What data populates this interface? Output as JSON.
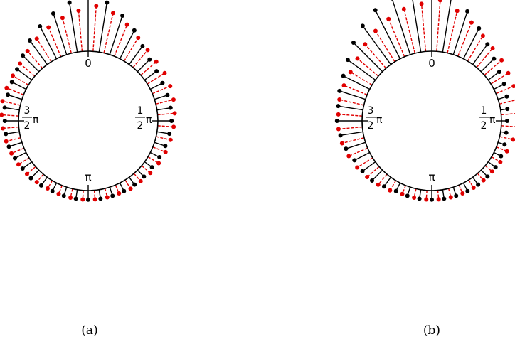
{
  "chart_data": [
    {
      "type": "scatter",
      "panel_label": "(a)",
      "axis": "circular",
      "angle_labels": {
        "top": {
          "text": "0"
        },
        "right": {
          "num": "1",
          "den": "2",
          "sym": "π"
        },
        "bottom": {
          "text": "π"
        },
        "left": {
          "num": "3",
          "den": "2",
          "sym": "π"
        }
      },
      "series": [
        {
          "color": "#000000",
          "line_style": "solid",
          "points": [
            {
              "angle_deg": 0,
              "length": 0.5
            },
            {
              "angle_deg": 9,
              "length": 0.44
            },
            {
              "angle_deg": 18,
              "length": 0.36
            },
            {
              "angle_deg": 27,
              "length": 0.28
            },
            {
              "angle_deg": 36,
              "length": 0.2
            },
            {
              "angle_deg": 45,
              "length": 0.15
            },
            {
              "angle_deg": 54,
              "length": 0.13
            },
            {
              "angle_deg": 63,
              "length": 0.12
            },
            {
              "angle_deg": 72,
              "length": 0.12
            },
            {
              "angle_deg": 81,
              "length": 0.12
            },
            {
              "angle_deg": 90,
              "length": 0.12
            },
            {
              "angle_deg": 99,
              "length": 0.11
            },
            {
              "angle_deg": 108,
              "length": 0.1
            },
            {
              "angle_deg": 117,
              "length": 0.09
            },
            {
              "angle_deg": 126,
              "length": 0.08
            },
            {
              "angle_deg": 135,
              "length": 0.08
            },
            {
              "angle_deg": 144,
              "length": 0.08
            },
            {
              "angle_deg": 153,
              "length": 0.08
            },
            {
              "angle_deg": 162,
              "length": 0.08
            },
            {
              "angle_deg": 171,
              "length": 0.08
            },
            {
              "angle_deg": 180,
              "length": 0.08
            },
            {
              "angle_deg": 189,
              "length": 0.08
            },
            {
              "angle_deg": 198,
              "length": 0.08
            },
            {
              "angle_deg": 207,
              "length": 0.08
            },
            {
              "angle_deg": 216,
              "length": 0.09
            },
            {
              "angle_deg": 225,
              "length": 0.1
            },
            {
              "angle_deg": 234,
              "length": 0.1
            },
            {
              "angle_deg": 243,
              "length": 0.11
            },
            {
              "angle_deg": 252,
              "length": 0.12
            },
            {
              "angle_deg": 261,
              "length": 0.12
            },
            {
              "angle_deg": 270,
              "length": 0.12
            },
            {
              "angle_deg": 279,
              "length": 0.13
            },
            {
              "angle_deg": 288,
              "length": 0.13
            },
            {
              "angle_deg": 297,
              "length": 0.14
            },
            {
              "angle_deg": 306,
              "length": 0.16
            },
            {
              "angle_deg": 315,
              "length": 0.2
            },
            {
              "angle_deg": 324,
              "length": 0.26
            },
            {
              "angle_deg": 333,
              "length": 0.32
            },
            {
              "angle_deg": 342,
              "length": 0.38
            },
            {
              "angle_deg": 351,
              "length": 0.44
            }
          ]
        },
        {
          "color": "#e00000",
          "line_style": "dashed",
          "points": [
            {
              "angle_deg": 4,
              "length": 0.4
            },
            {
              "angle_deg": 13,
              "length": 0.36
            },
            {
              "angle_deg": 22,
              "length": 0.3
            },
            {
              "angle_deg": 31,
              "length": 0.24
            },
            {
              "angle_deg": 40,
              "length": 0.2
            },
            {
              "angle_deg": 49,
              "length": 0.18
            },
            {
              "angle_deg": 58,
              "length": 0.18
            },
            {
              "angle_deg": 67,
              "length": 0.17
            },
            {
              "angle_deg": 76,
              "length": 0.16
            },
            {
              "angle_deg": 85,
              "length": 0.15
            },
            {
              "angle_deg": 94,
              "length": 0.14
            },
            {
              "angle_deg": 103,
              "length": 0.13
            },
            {
              "angle_deg": 112,
              "length": 0.12
            },
            {
              "angle_deg": 121,
              "length": 0.11
            },
            {
              "angle_deg": 130,
              "length": 0.1
            },
            {
              "angle_deg": 139,
              "length": 0.09
            },
            {
              "angle_deg": 148,
              "length": 0.09
            },
            {
              "angle_deg": 157,
              "length": 0.08
            },
            {
              "angle_deg": 166,
              "length": 0.08
            },
            {
              "angle_deg": 175,
              "length": 0.08
            },
            {
              "angle_deg": 184,
              "length": 0.08
            },
            {
              "angle_deg": 193,
              "length": 0.08
            },
            {
              "angle_deg": 202,
              "length": 0.08
            },
            {
              "angle_deg": 211,
              "length": 0.08
            },
            {
              "angle_deg": 220,
              "length": 0.09
            },
            {
              "angle_deg": 229,
              "length": 0.1
            },
            {
              "angle_deg": 238,
              "length": 0.11
            },
            {
              "angle_deg": 247,
              "length": 0.12
            },
            {
              "angle_deg": 256,
              "length": 0.13
            },
            {
              "angle_deg": 265,
              "length": 0.14
            },
            {
              "angle_deg": 274,
              "length": 0.15
            },
            {
              "angle_deg": 283,
              "length": 0.16
            },
            {
              "angle_deg": 292,
              "length": 0.16
            },
            {
              "angle_deg": 301,
              "length": 0.16
            },
            {
              "angle_deg": 310,
              "length": 0.17
            },
            {
              "angle_deg": 319,
              "length": 0.2
            },
            {
              "angle_deg": 328,
              "length": 0.24
            },
            {
              "angle_deg": 337,
              "length": 0.28
            },
            {
              "angle_deg": 346,
              "length": 0.32
            },
            {
              "angle_deg": 355,
              "length": 0.36
            }
          ]
        }
      ]
    },
    {
      "type": "scatter",
      "panel_label": "(b)",
      "axis": "circular",
      "angle_labels": {
        "top": {
          "text": "0"
        },
        "right": {
          "num": "1",
          "den": "2",
          "sym": "π"
        },
        "bottom": {
          "text": "π"
        },
        "left": {
          "num": "3",
          "den": "2",
          "sym": "π"
        }
      },
      "series": [
        {
          "color": "#000000",
          "line_style": "solid",
          "points": [
            {
              "angle_deg": 0,
              "length": 0.6
            },
            {
              "angle_deg": 9,
              "length": 0.5
            },
            {
              "angle_deg": 18,
              "length": 0.4
            },
            {
              "angle_deg": 27,
              "length": 0.3
            },
            {
              "angle_deg": 36,
              "length": 0.22
            },
            {
              "angle_deg": 45,
              "length": 0.16
            },
            {
              "angle_deg": 54,
              "length": 0.12
            },
            {
              "angle_deg": 63,
              "length": 0.1
            },
            {
              "angle_deg": 72,
              "length": 0.08
            },
            {
              "angle_deg": 81,
              "length": 0.06
            },
            {
              "angle_deg": 90,
              "length": 0.05
            },
            {
              "angle_deg": 99,
              "length": 0.05
            },
            {
              "angle_deg": 108,
              "length": 0.06
            },
            {
              "angle_deg": 117,
              "length": 0.07
            },
            {
              "angle_deg": 126,
              "length": 0.08
            },
            {
              "angle_deg": 135,
              "length": 0.08
            },
            {
              "angle_deg": 144,
              "length": 0.08
            },
            {
              "angle_deg": 153,
              "length": 0.08
            },
            {
              "angle_deg": 162,
              "length": 0.08
            },
            {
              "angle_deg": 171,
              "length": 0.08
            },
            {
              "angle_deg": 180,
              "length": 0.08
            },
            {
              "angle_deg": 189,
              "length": 0.08
            },
            {
              "angle_deg": 198,
              "length": 0.08
            },
            {
              "angle_deg": 207,
              "length": 0.08
            },
            {
              "angle_deg": 216,
              "length": 0.1
            },
            {
              "angle_deg": 225,
              "length": 0.13
            },
            {
              "angle_deg": 234,
              "length": 0.14
            },
            {
              "angle_deg": 243,
              "length": 0.15
            },
            {
              "angle_deg": 252,
              "length": 0.18
            },
            {
              "angle_deg": 261,
              "length": 0.2
            },
            {
              "angle_deg": 270,
              "length": 0.22
            },
            {
              "angle_deg": 279,
              "length": 0.22
            },
            {
              "angle_deg": 288,
              "length": 0.24
            },
            {
              "angle_deg": 297,
              "length": 0.26
            },
            {
              "angle_deg": 306,
              "length": 0.3
            },
            {
              "angle_deg": 315,
              "length": 0.36
            },
            {
              "angle_deg": 324,
              "length": 0.42
            },
            {
              "angle_deg": 333,
              "length": 0.48
            },
            {
              "angle_deg": 342,
              "length": 0.52
            },
            {
              "angle_deg": 351,
              "length": 0.56
            }
          ]
        },
        {
          "color": "#e00000",
          "line_style": "dashed",
          "points": [
            {
              "angle_deg": 4,
              "length": 0.45
            },
            {
              "angle_deg": 13,
              "length": 0.38
            },
            {
              "angle_deg": 22,
              "length": 0.32
            },
            {
              "angle_deg": 31,
              "length": 0.26
            },
            {
              "angle_deg": 40,
              "length": 0.22
            },
            {
              "angle_deg": 49,
              "length": 0.2
            },
            {
              "angle_deg": 58,
              "length": 0.18
            },
            {
              "angle_deg": 67,
              "length": 0.17
            },
            {
              "angle_deg": 76,
              "length": 0.16
            },
            {
              "angle_deg": 85,
              "length": 0.15
            },
            {
              "angle_deg": 94,
              "length": 0.14
            },
            {
              "angle_deg": 103,
              "length": 0.12
            },
            {
              "angle_deg": 112,
              "length": 0.1
            },
            {
              "angle_deg": 121,
              "length": 0.09
            },
            {
              "angle_deg": 130,
              "length": 0.08
            },
            {
              "angle_deg": 139,
              "length": 0.08
            },
            {
              "angle_deg": 148,
              "length": 0.08
            },
            {
              "angle_deg": 157,
              "length": 0.08
            },
            {
              "angle_deg": 166,
              "length": 0.08
            },
            {
              "angle_deg": 175,
              "length": 0.08
            },
            {
              "angle_deg": 184,
              "length": 0.08
            },
            {
              "angle_deg": 193,
              "length": 0.08
            },
            {
              "angle_deg": 202,
              "length": 0.08
            },
            {
              "angle_deg": 211,
              "length": 0.1
            },
            {
              "angle_deg": 220,
              "length": 0.12
            },
            {
              "angle_deg": 229,
              "length": 0.14
            },
            {
              "angle_deg": 238,
              "length": 0.16
            },
            {
              "angle_deg": 247,
              "length": 0.18
            },
            {
              "angle_deg": 256,
              "length": 0.2
            },
            {
              "angle_deg": 265,
              "length": 0.21
            },
            {
              "angle_deg": 274,
              "length": 0.21
            },
            {
              "angle_deg": 283,
              "length": 0.22
            },
            {
              "angle_deg": 292,
              "length": 0.22
            },
            {
              "angle_deg": 301,
              "length": 0.22
            },
            {
              "angle_deg": 310,
              "length": 0.24
            },
            {
              "angle_deg": 319,
              "length": 0.28
            },
            {
              "angle_deg": 328,
              "length": 0.32
            },
            {
              "angle_deg": 337,
              "length": 0.36
            },
            {
              "angle_deg": 346,
              "length": 0.4
            },
            {
              "angle_deg": 355,
              "length": 0.42
            }
          ]
        }
      ]
    }
  ]
}
